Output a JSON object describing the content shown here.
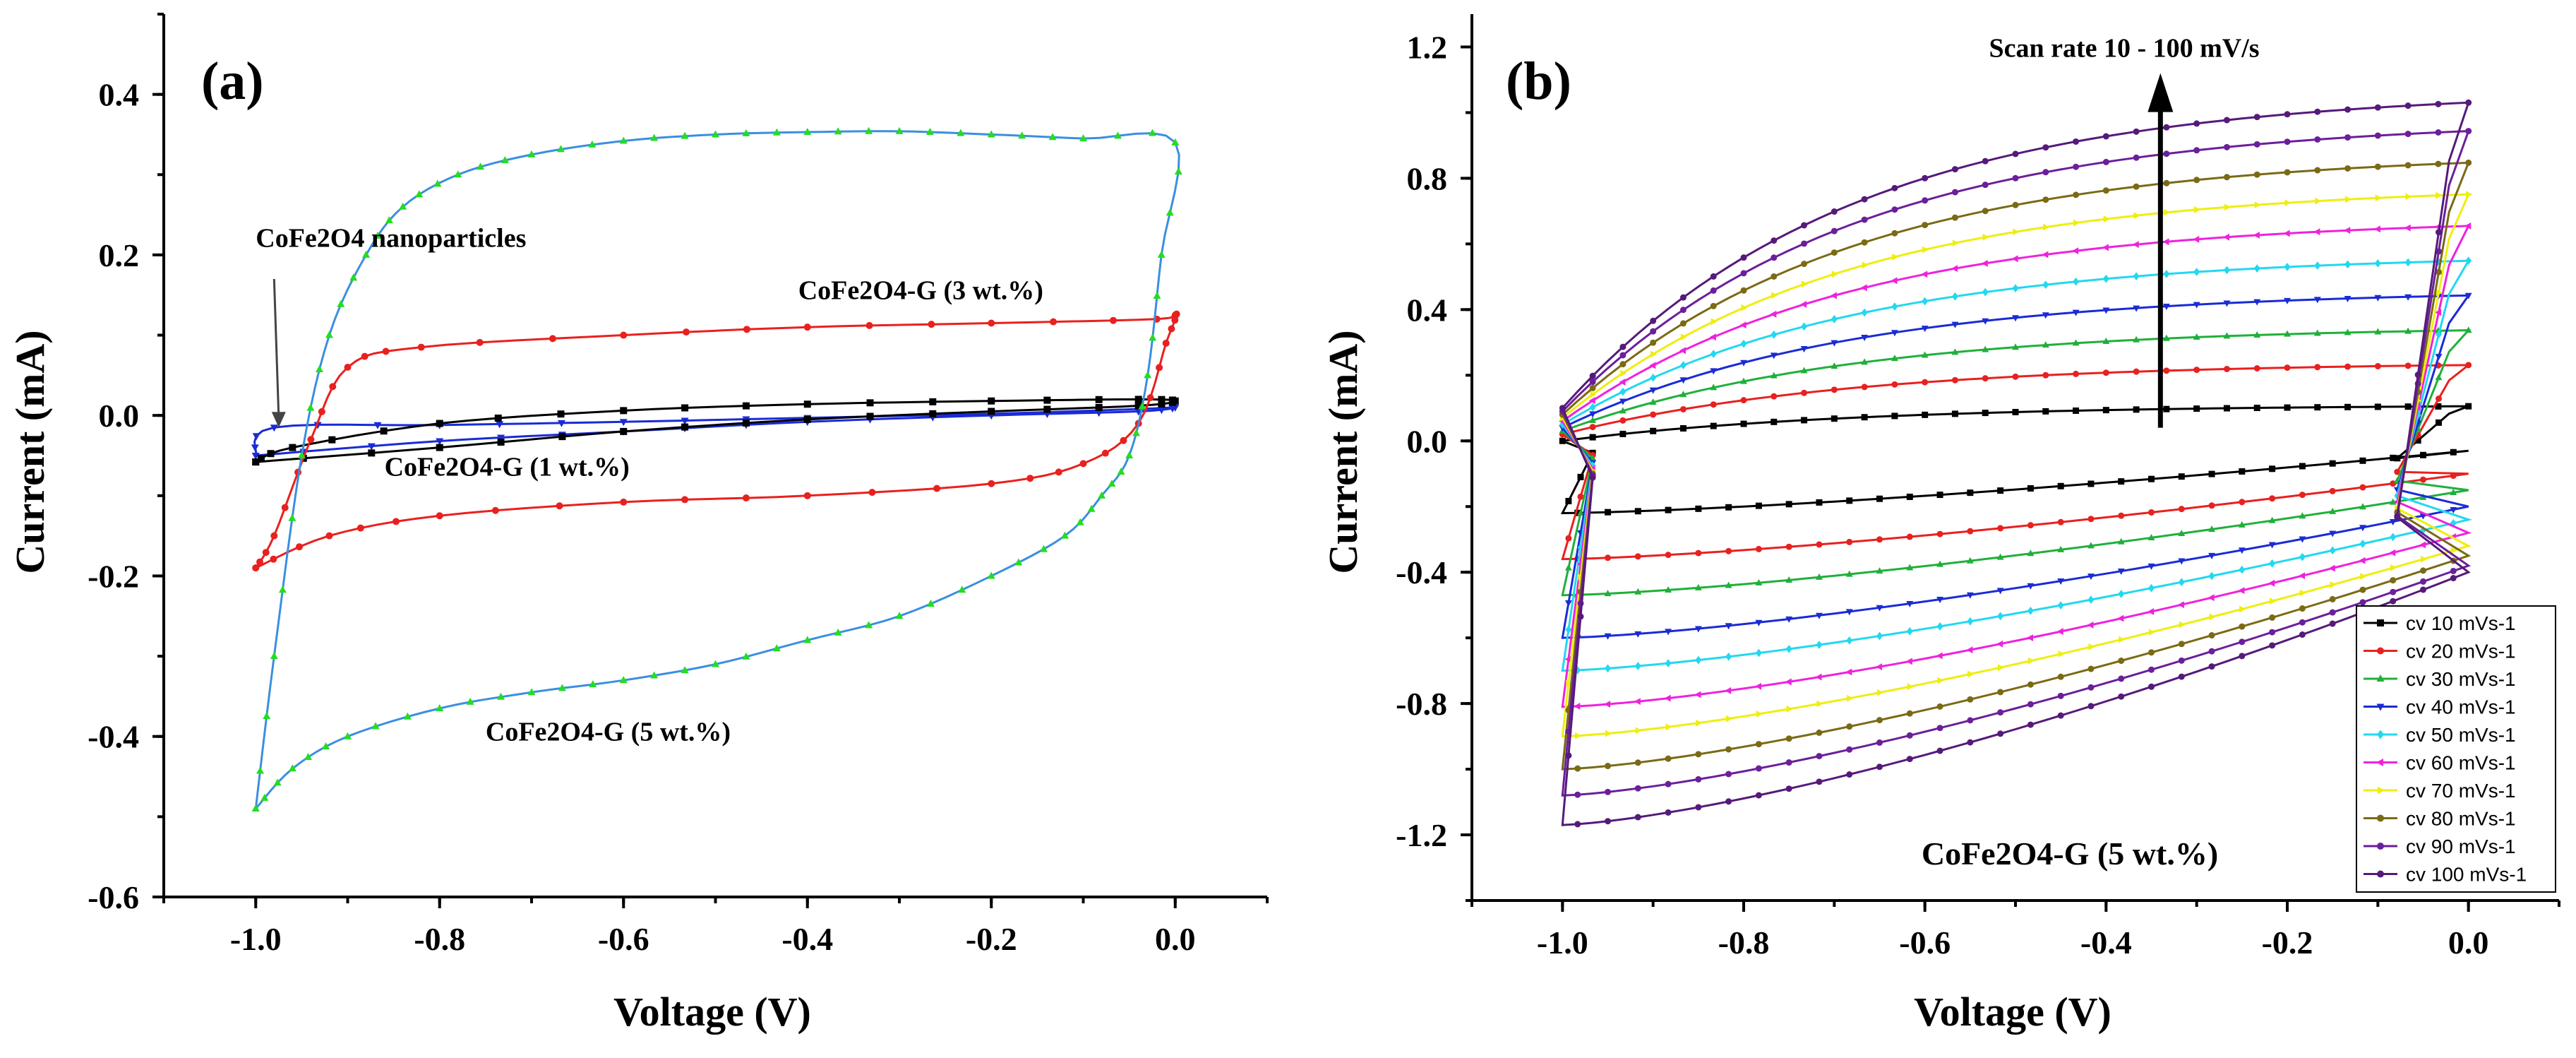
{
  "chart_data": [
    {
      "panel": "(a)",
      "type": "line",
      "title": "",
      "xlabel": "Voltage (V)",
      "ylabel": "Current (mA)",
      "xlim": [
        -1.1,
        0.1
      ],
      "ylim": [
        -0.6,
        0.5
      ],
      "xticks": [
        -1.0,
        -0.8,
        -0.6,
        -0.4,
        -0.2,
        0.0
      ],
      "xtick_labels": [
        "-1.0",
        "-0.8",
        "-0.6",
        "-0.4",
        "-0.2",
        "0.0"
      ],
      "yticks": [
        -0.6,
        -0.4,
        -0.2,
        0.0,
        0.2,
        0.4
      ],
      "ytick_labels": [
        "-0.6",
        "-0.4",
        "-0.2",
        "0.0",
        "0.2",
        "0.4"
      ],
      "grid": false,
      "annotations": [
        {
          "text": "CoFe2O4 nanoparticles",
          "x": -1.0,
          "y": 0.21
        },
        {
          "text": "CoFe2O4-G (3 wt.%)",
          "x": -0.41,
          "y": 0.145
        },
        {
          "text": "CoFe2O4-G (1 wt.%)",
          "x": -0.86,
          "y": -0.075
        },
        {
          "text": "CoFe2O4-G (5 wt.%)",
          "x": -0.75,
          "y": -0.405
        }
      ],
      "arrow_note": {
        "from": [
          -0.98,
          0.17
        ],
        "to": [
          -0.975,
          -0.015
        ]
      },
      "series": [
        {
          "name": "CoFe2O4 nanoparticles",
          "color": "#1a2bd6",
          "marker": "triangle-down",
          "points": [
            [
              -1.0,
              -0.05
            ],
            [
              -0.98,
              -0.015
            ],
            [
              -0.8,
              -0.012
            ],
            [
              -0.6,
              -0.008
            ],
            [
              -0.4,
              -0.003
            ],
            [
              -0.2,
              0.002
            ],
            [
              -0.04,
              0.008
            ],
            [
              0.0,
              0.01
            ],
            [
              -0.04,
              0.005
            ],
            [
              -0.2,
              0.0
            ],
            [
              -0.4,
              -0.008
            ],
            [
              -0.6,
              -0.02
            ],
            [
              -0.8,
              -0.032
            ],
            [
              -1.0,
              -0.05
            ]
          ]
        },
        {
          "name": "CoFe2O4-G (1 wt.%)",
          "color": "#000000",
          "marker": "square",
          "points": [
            [
              -1.0,
              -0.058
            ],
            [
              -0.8,
              -0.04
            ],
            [
              -0.6,
              -0.02
            ],
            [
              -0.4,
              -0.005
            ],
            [
              -0.2,
              0.005
            ],
            [
              -0.04,
              0.012
            ],
            [
              0.0,
              0.018
            ],
            [
              -0.04,
              0.02
            ],
            [
              -0.2,
              0.018
            ],
            [
              -0.4,
              0.014
            ],
            [
              -0.6,
              0.006
            ],
            [
              -0.8,
              -0.01
            ],
            [
              -0.96,
              -0.04
            ],
            [
              -1.0,
              -0.058
            ]
          ]
        },
        {
          "name": "CoFe2O4-G (3 wt.%)",
          "color": "#e8211f",
          "marker": "circle",
          "points": [
            [
              -1.0,
              -0.19
            ],
            [
              -0.98,
              -0.15
            ],
            [
              -0.94,
              -0.03
            ],
            [
              -0.9,
              0.06
            ],
            [
              -0.82,
              0.085
            ],
            [
              -0.6,
              0.1
            ],
            [
              -0.4,
              0.11
            ],
            [
              -0.2,
              0.115
            ],
            [
              -0.02,
              0.12
            ],
            [
              0.0,
              0.125
            ],
            [
              -0.01,
              0.09
            ],
            [
              -0.04,
              -0.01
            ],
            [
              -0.1,
              -0.06
            ],
            [
              -0.2,
              -0.085
            ],
            [
              -0.4,
              -0.1
            ],
            [
              -0.6,
              -0.108
            ],
            [
              -0.8,
              -0.125
            ],
            [
              -0.92,
              -0.15
            ],
            [
              -1.0,
              -0.19
            ]
          ]
        },
        {
          "name": "CoFe2O4-G (5 wt.%)",
          "color": "#22dd22",
          "line_color": "#3a8fe0",
          "marker": "triangle-up",
          "points": [
            [
              -1.0,
              -0.49
            ],
            [
              -0.98,
              -0.3
            ],
            [
              -0.95,
              -0.05
            ],
            [
              -0.92,
              0.1
            ],
            [
              -0.88,
              0.2
            ],
            [
              -0.84,
              0.26
            ],
            [
              -0.78,
              0.3
            ],
            [
              -0.7,
              0.325
            ],
            [
              -0.6,
              0.342
            ],
            [
              -0.5,
              0.35
            ],
            [
              -0.4,
              0.353
            ],
            [
              -0.3,
              0.354
            ],
            [
              -0.2,
              0.35
            ],
            [
              -0.1,
              0.345
            ],
            [
              0.0,
              0.34
            ],
            [
              -0.015,
              0.2
            ],
            [
              -0.03,
              0.05
            ],
            [
              -0.05,
              -0.05
            ],
            [
              -0.08,
              -0.1
            ],
            [
              -0.12,
              -0.15
            ],
            [
              -0.2,
              -0.2
            ],
            [
              -0.3,
              -0.25
            ],
            [
              -0.4,
              -0.28
            ],
            [
              -0.5,
              -0.31
            ],
            [
              -0.6,
              -0.33
            ],
            [
              -0.7,
              -0.345
            ],
            [
              -0.8,
              -0.365
            ],
            [
              -0.9,
              -0.4
            ],
            [
              -0.96,
              -0.44
            ],
            [
              -1.0,
              -0.49
            ]
          ]
        }
      ]
    },
    {
      "panel": "(b)",
      "type": "line",
      "title": "",
      "xlabel": "Voltage (V)",
      "ylabel": "Current (mA)",
      "xlim": [
        -1.1,
        0.1
      ],
      "ylim": [
        -1.4,
        1.3
      ],
      "xticks": [
        -1.0,
        -0.8,
        -0.6,
        -0.4,
        -0.2,
        0.0
      ],
      "xtick_labels": [
        "-1.0",
        "-0.8",
        "-0.6",
        "-0.4",
        "-0.2",
        "0.0"
      ],
      "yticks": [
        -1.2,
        -0.8,
        -0.4,
        0.0,
        0.4,
        0.8,
        1.2
      ],
      "ytick_labels": [
        "-1.2",
        "-0.8",
        "-0.4",
        "0.0",
        "0.4",
        "0.8",
        "1.2"
      ],
      "grid": false,
      "annotations": [
        {
          "text": "Scan rate 10 - 100 mV/s",
          "x": -0.38,
          "y": 1.17
        },
        {
          "text": "CoFe2O4-G (5 wt.%)",
          "x": -0.44,
          "y": -1.29
        }
      ],
      "arrow_note": {
        "from": [
          -0.34,
          0.04
        ],
        "to": [
          -0.34,
          1.12
        ]
      },
      "legend_position": "bottom-right",
      "series": [
        {
          "name": "cv 10 mVs-1",
          "color": "#000000",
          "marker": "square",
          "top": 0.11,
          "bottom_left": -0.22,
          "bottom_right": -0.03,
          "top_left": 0.0
        },
        {
          "name": "cv 20 mVs-1",
          "color": "#e8211f",
          "marker": "circle",
          "top": 0.24,
          "bottom_left": -0.36,
          "bottom_right": -0.1,
          "top_left": 0.02
        },
        {
          "name": "cv 30 mVs-1",
          "color": "#1fb03a",
          "marker": "triangle-up",
          "top": 0.35,
          "bottom_left": -0.47,
          "bottom_right": -0.15,
          "top_left": 0.03
        },
        {
          "name": "cv 40 mVs-1",
          "color": "#1a2bd6",
          "marker": "triangle-down",
          "top": 0.46,
          "bottom_left": -0.6,
          "bottom_right": -0.2,
          "top_left": 0.04
        },
        {
          "name": "cv 50 mVs-1",
          "color": "#22d8f0",
          "marker": "diamond",
          "top": 0.57,
          "bottom_left": -0.7,
          "bottom_right": -0.24,
          "top_left": 0.05
        },
        {
          "name": "cv 60 mVs-1",
          "color": "#ee22dd",
          "marker": "triangle-left",
          "top": 0.68,
          "bottom_left": -0.81,
          "bottom_right": -0.28,
          "top_left": 0.06
        },
        {
          "name": "cv 70 mVs-1",
          "color": "#eeee11",
          "marker": "triangle-right",
          "top": 0.78,
          "bottom_left": -0.9,
          "bottom_right": -0.32,
          "top_left": 0.07
        },
        {
          "name": "cv 80 mVs-1",
          "color": "#7a6a14",
          "marker": "hexagon",
          "top": 0.88,
          "bottom_left": -1.0,
          "bottom_right": -0.35,
          "top_left": 0.08
        },
        {
          "name": "cv 90 mVs-1",
          "color": "#6b1f9a",
          "marker": "star",
          "top": 0.98,
          "bottom_left": -1.08,
          "bottom_right": -0.38,
          "top_left": 0.09
        },
        {
          "name": "cv 100 mVs-1",
          "color": "#551a7a",
          "marker": "pentagon",
          "top": 1.07,
          "bottom_left": -1.17,
          "bottom_right": -0.4,
          "top_left": 0.1
        }
      ]
    }
  ]
}
